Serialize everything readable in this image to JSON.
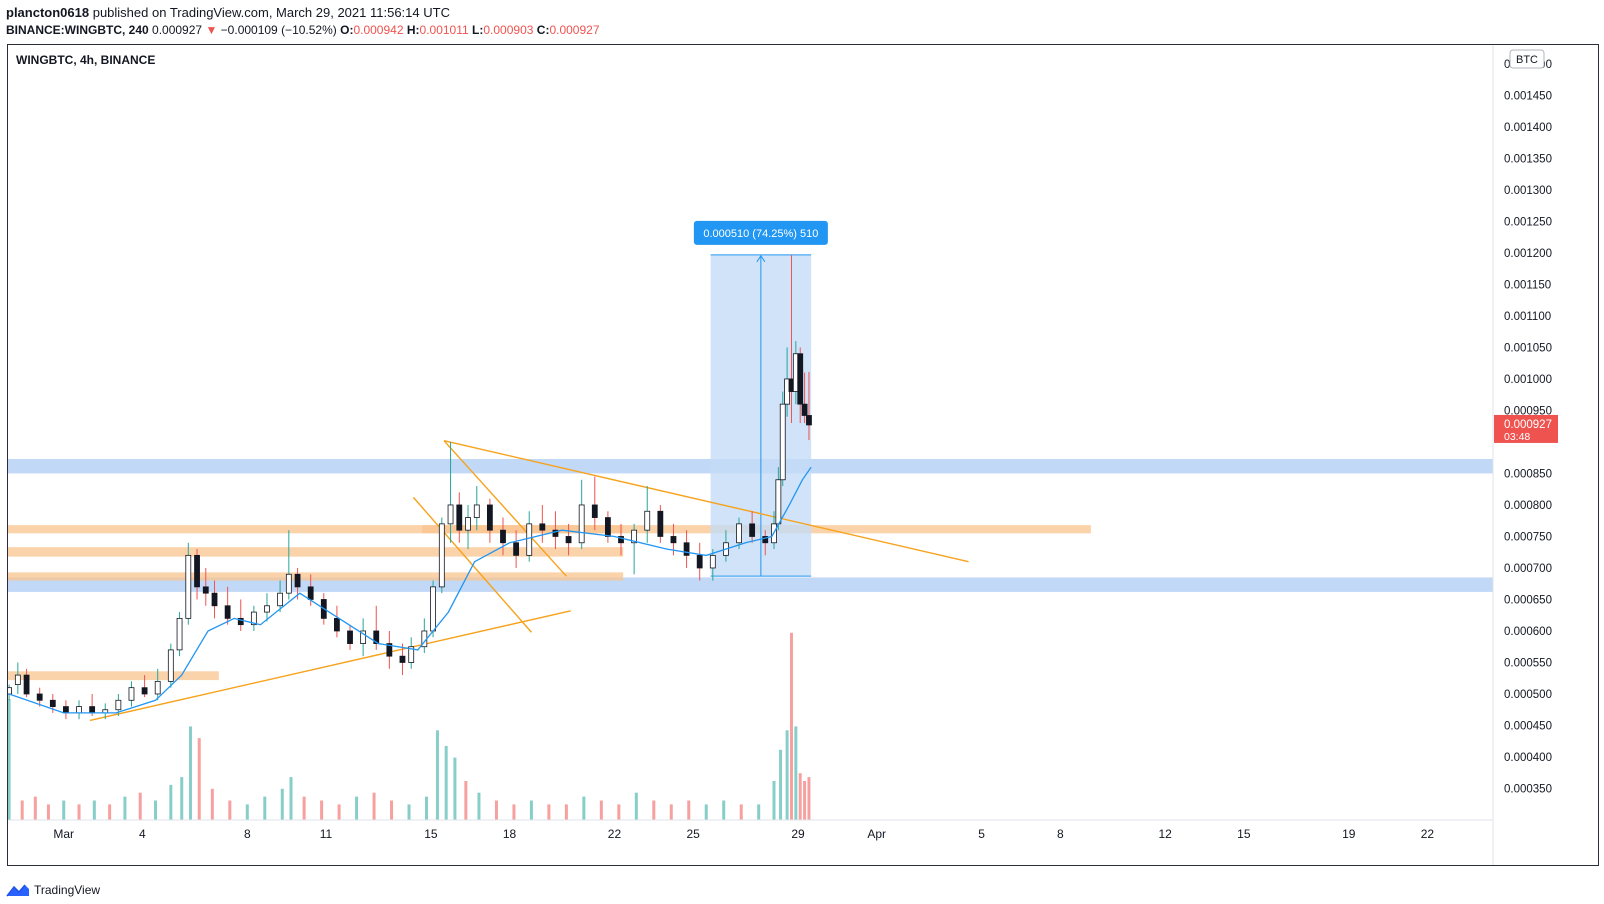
{
  "header": {
    "publisher": "plancton0618",
    "published_text": "published on TradingView.com, March 29, 2021 11:56:14 UTC",
    "symbol": "BINANCE:WINGBTC, 240",
    "last": "0.000927",
    "change_arrow": "▼",
    "change": "−0.000109 (−10.52%)",
    "o_label": "O:",
    "o_value": "0.000942",
    "h_label": "H:",
    "h_value": "0.001011",
    "l_label": "L:",
    "l_value": "0.000903",
    "c_label": "C:",
    "c_value": "0.000927"
  },
  "footer": {
    "brand": "TradingView"
  },
  "colors": {
    "up": "#26a69a",
    "down": "#ef5350",
    "ma": "#2196f3",
    "trendline": "#f7a21b",
    "orange_zone": "#f9c48f",
    "blue_zone": "#90b8f0",
    "measure_fill": "#c4dcf6",
    "measure_label_bg": "#2196f3"
  },
  "chart_data": {
    "type": "candlestick",
    "title": "WINGBTC, 4h, BINANCE",
    "currency_badge": "BTC",
    "y_range": [
      0.0003,
      0.00153
    ],
    "y_ticks": [
      "0.001500",
      "0.001450",
      "0.001400",
      "0.001350",
      "0.001300",
      "0.001250",
      "0.001200",
      "0.001150",
      "0.001100",
      "0.001050",
      "0.001000",
      "0.000950",
      "0.000850",
      "0.000800",
      "0.000750",
      "0.000700",
      "0.000650",
      "0.000600",
      "0.000550",
      "0.000500",
      "0.000450",
      "0.000400",
      "0.000350"
    ],
    "y_tick_partial": "0.001500",
    "x_ticks": [
      "Mar",
      "4",
      "8",
      "11",
      "15",
      "18",
      "22",
      "25",
      "29",
      "Apr",
      "5",
      "8",
      "12",
      "15",
      "19",
      "22"
    ],
    "x_tick_dates": [
      "2021-03-01",
      "2021-03-04",
      "2021-03-08",
      "2021-03-11",
      "2021-03-15",
      "2021-03-18",
      "2021-03-22",
      "2021-03-25",
      "2021-03-29",
      "2021-04-01",
      "2021-04-05",
      "2021-04-08",
      "2021-04-12",
      "2021-04-15",
      "2021-04-19",
      "2021-04-22"
    ],
    "x_range": [
      "2021-02-26T21:00",
      "2021-04-24T12:00"
    ],
    "last_price_label": "0.000927",
    "countdown_label": "03:48",
    "measure": {
      "label": "0.000510 (74.25%) 510",
      "from_date": "2021-03-25T16:00",
      "to_date": "2021-03-29T12:00",
      "low": 0.000687,
      "high": 0.001197
    },
    "zones": [
      {
        "color": "blue",
        "low": 0.00085,
        "high": 0.000873,
        "from": "2021-02-26T21:00",
        "to": "2021-04-24T12:00"
      },
      {
        "color": "blue",
        "low": 0.000662,
        "high": 0.000685,
        "from": "2021-02-26T21:00",
        "to": "2021-04-24T12:00"
      },
      {
        "color": "orange",
        "low": 0.000755,
        "high": 0.000768,
        "from": "2021-02-26T21:00",
        "to": "2021-03-22T08:00"
      },
      {
        "color": "orange",
        "low": 0.000755,
        "high": 0.000768,
        "from": "2021-03-14T16:00",
        "to": "2021-04-09T04:00"
      },
      {
        "color": "orange",
        "low": 0.000718,
        "high": 0.000733,
        "from": "2021-02-26T21:00",
        "to": "2021-03-22T08:00"
      },
      {
        "color": "orange",
        "low": 0.00068,
        "high": 0.000693,
        "from": "2021-02-26T21:00",
        "to": "2021-03-22T08:00"
      },
      {
        "color": "orange",
        "low": 0.000522,
        "high": 0.000536,
        "from": "2021-02-26T21:00",
        "to": "2021-03-06T22:00"
      }
    ],
    "trendlines": [
      {
        "from": [
          "2021-03-02T00:00",
          0.000458
        ],
        "to": [
          "2021-03-20T08:00",
          0.000632
        ]
      },
      {
        "from": [
          "2021-03-15T12:00",
          0.000902
        ],
        "to": [
          "2021-04-04T12:00",
          0.00071
        ]
      },
      {
        "from": [
          "2021-03-15T12:00",
          0.000902
        ],
        "to": [
          "2021-03-20T04:00",
          0.000687
        ]
      },
      {
        "from": [
          "2021-03-14T08:00",
          0.000812
        ],
        "to": [
          "2021-03-18T20:00",
          0.000598
        ]
      }
    ],
    "ma_path": [
      [
        "2021-02-26T22:00",
        0.0005
      ],
      [
        "2021-03-01T00:00",
        0.00047
      ],
      [
        "2021-03-03T00:00",
        0.00047
      ],
      [
        "2021-03-04T12:00",
        0.00049
      ],
      [
        "2021-03-05T12:00",
        0.00053
      ],
      [
        "2021-03-06T12:00",
        0.0006
      ],
      [
        "2021-03-07T12:00",
        0.00062
      ],
      [
        "2021-03-08T12:00",
        0.00061
      ],
      [
        "2021-03-10T00:00",
        0.00066
      ],
      [
        "2021-03-11T12:00",
        0.00062
      ],
      [
        "2021-03-13T00:00",
        0.00058
      ],
      [
        "2021-03-14T12:00",
        0.00057
      ],
      [
        "2021-03-15T16:00",
        0.00063
      ],
      [
        "2021-03-16T16:00",
        0.00071
      ],
      [
        "2021-03-18T00:00",
        0.00074
      ],
      [
        "2021-03-20T00:00",
        0.00076
      ],
      [
        "2021-03-22T00:00",
        0.00075
      ],
      [
        "2021-03-24T00:00",
        0.00073
      ],
      [
        "2021-03-25T12:00",
        0.00072
      ],
      [
        "2021-03-27T00:00",
        0.00074
      ],
      [
        "2021-03-28T00:00",
        0.00075
      ],
      [
        "2021-03-28T16:00",
        0.0008
      ],
      [
        "2021-03-29T04:00",
        0.00084
      ],
      [
        "2021-03-29T12:00",
        0.00086
      ]
    ],
    "candles": [
      [
        "2021-02-26T22:00",
        0.0005,
        0.000515,
        0.00049,
        0.00051
      ],
      [
        "2021-02-27T06:00",
        0.000515,
        0.00055,
        0.0005,
        0.00053
      ],
      [
        "2021-02-27T14:00",
        0.00053,
        0.00054,
        0.000495,
        0.0005
      ],
      [
        "2021-02-28T02:00",
        0.0005,
        0.00051,
        0.00048,
        0.00049
      ],
      [
        "2021-02-28T14:00",
        0.00049,
        0.0005,
        0.00047,
        0.00048
      ],
      [
        "2021-03-01T02:00",
        0.00048,
        0.00049,
        0.00046,
        0.00047
      ],
      [
        "2021-03-01T14:00",
        0.00047,
        0.00049,
        0.00046,
        0.00048
      ],
      [
        "2021-03-02T02:00",
        0.00048,
        0.0005,
        0.000465,
        0.00047
      ],
      [
        "2021-03-02T14:00",
        0.00047,
        0.000485,
        0.00046,
        0.000475
      ],
      [
        "2021-03-03T02:00",
        0.000475,
        0.0005,
        0.000465,
        0.00049
      ],
      [
        "2021-03-03T14:00",
        0.00049,
        0.00052,
        0.00048,
        0.00051
      ],
      [
        "2021-03-04T02:00",
        0.00051,
        0.00053,
        0.000495,
        0.0005
      ],
      [
        "2021-03-04T14:00",
        0.0005,
        0.00054,
        0.00049,
        0.00052
      ],
      [
        "2021-03-05T02:00",
        0.00052,
        0.00058,
        0.00051,
        0.00057
      ],
      [
        "2021-03-05T10:00",
        0.00057,
        0.00063,
        0.00056,
        0.00062
      ],
      [
        "2021-03-05T18:00",
        0.00062,
        0.00074,
        0.00061,
        0.00072
      ],
      [
        "2021-03-06T02:00",
        0.00072,
        0.00073,
        0.00065,
        0.00067
      ],
      [
        "2021-03-06T10:00",
        0.00067,
        0.0007,
        0.00064,
        0.00066
      ],
      [
        "2021-03-06T18:00",
        0.00066,
        0.00068,
        0.00062,
        0.00064
      ],
      [
        "2021-03-07T06:00",
        0.00064,
        0.00067,
        0.00061,
        0.00062
      ],
      [
        "2021-03-07T18:00",
        0.00062,
        0.00065,
        0.0006,
        0.00061
      ],
      [
        "2021-03-08T06:00",
        0.00061,
        0.00064,
        0.0006,
        0.00063
      ],
      [
        "2021-03-08T18:00",
        0.00063,
        0.00066,
        0.000615,
        0.00064
      ],
      [
        "2021-03-09T06:00",
        0.00064,
        0.00068,
        0.00063,
        0.00066
      ],
      [
        "2021-03-09T14:00",
        0.00066,
        0.00076,
        0.00065,
        0.00069
      ],
      [
        "2021-03-09T22:00",
        0.00069,
        0.0007,
        0.00065,
        0.00067
      ],
      [
        "2021-03-10T10:00",
        0.00067,
        0.00069,
        0.00064,
        0.00065
      ],
      [
        "2021-03-10T22:00",
        0.00065,
        0.00066,
        0.00061,
        0.00062
      ],
      [
        "2021-03-11T10:00",
        0.00062,
        0.00064,
        0.00059,
        0.0006
      ],
      [
        "2021-03-11T22:00",
        0.0006,
        0.00061,
        0.00057,
        0.00058
      ],
      [
        "2021-03-12T10:00",
        0.00058,
        0.00062,
        0.00056,
        0.0006
      ],
      [
        "2021-03-12T22:00",
        0.0006,
        0.00064,
        0.00057,
        0.00058
      ],
      [
        "2021-03-13T10:00",
        0.00058,
        0.0006,
        0.00054,
        0.00056
      ],
      [
        "2021-03-13T22:00",
        0.00056,
        0.00058,
        0.00053,
        0.00055
      ],
      [
        "2021-03-14T06:00",
        0.00055,
        0.00059,
        0.00054,
        0.000575
      ],
      [
        "2021-03-14T18:00",
        0.000575,
        0.00062,
        0.000565,
        0.0006
      ],
      [
        "2021-03-15T02:00",
        0.0006,
        0.00068,
        0.00059,
        0.00067
      ],
      [
        "2021-03-15T10:00",
        0.00067,
        0.00078,
        0.00066,
        0.00077
      ],
      [
        "2021-03-15T18:00",
        0.00077,
        0.0009,
        0.00074,
        0.0008
      ],
      [
        "2021-03-16T02:00",
        0.0008,
        0.00082,
        0.00074,
        0.00076
      ],
      [
        "2021-03-16T10:00",
        0.00076,
        0.0008,
        0.00073,
        0.00078
      ],
      [
        "2021-03-16T18:00",
        0.00078,
        0.00083,
        0.00076,
        0.0008
      ],
      [
        "2021-03-17T06:00",
        0.0008,
        0.00081,
        0.00074,
        0.00076
      ],
      [
        "2021-03-17T18:00",
        0.00076,
        0.00078,
        0.00072,
        0.00074
      ],
      [
        "2021-03-18T06:00",
        0.00074,
        0.00076,
        0.0007,
        0.00072
      ],
      [
        "2021-03-18T18:00",
        0.00072,
        0.00079,
        0.00071,
        0.00077
      ],
      [
        "2021-03-19T06:00",
        0.00077,
        0.0008,
        0.00074,
        0.00076
      ],
      [
        "2021-03-19T18:00",
        0.00076,
        0.00079,
        0.00073,
        0.00075
      ],
      [
        "2021-03-20T06:00",
        0.00075,
        0.00077,
        0.00072,
        0.00074
      ],
      [
        "2021-03-20T18:00",
        0.00074,
        0.00084,
        0.00073,
        0.0008
      ],
      [
        "2021-03-21T06:00",
        0.0008,
        0.000845,
        0.00076,
        0.00078
      ],
      [
        "2021-03-21T18:00",
        0.00078,
        0.00079,
        0.00074,
        0.00075
      ],
      [
        "2021-03-22T06:00",
        0.00075,
        0.00077,
        0.00072,
        0.00074
      ],
      [
        "2021-03-22T18:00",
        0.00074,
        0.00077,
        0.00069,
        0.00076
      ],
      [
        "2021-03-23T06:00",
        0.00076,
        0.00083,
        0.00074,
        0.00079
      ],
      [
        "2021-03-23T18:00",
        0.00079,
        0.0008,
        0.00074,
        0.00075
      ],
      [
        "2021-03-24T06:00",
        0.00075,
        0.00077,
        0.00072,
        0.00074
      ],
      [
        "2021-03-24T18:00",
        0.00074,
        0.00076,
        0.0007,
        0.00072
      ],
      [
        "2021-03-25T06:00",
        0.00072,
        0.00074,
        0.00068,
        0.0007
      ],
      [
        "2021-03-25T18:00",
        0.0007,
        0.00073,
        0.00068,
        0.00072
      ],
      [
        "2021-03-26T06:00",
        0.00072,
        0.00076,
        0.00071,
        0.00074
      ],
      [
        "2021-03-26T18:00",
        0.00074,
        0.00078,
        0.00073,
        0.00077
      ],
      [
        "2021-03-27T06:00",
        0.00077,
        0.00079,
        0.00074,
        0.00075
      ],
      [
        "2021-03-27T18:00",
        0.00075,
        0.00076,
        0.00072,
        0.00074
      ],
      [
        "2021-03-28T02:00",
        0.00074,
        0.00079,
        0.00073,
        0.00077
      ],
      [
        "2021-03-28T06:00",
        0.00077,
        0.00086,
        0.00076,
        0.00084
      ],
      [
        "2021-03-28T10:00",
        0.00084,
        0.00098,
        0.00083,
        0.00096
      ],
      [
        "2021-03-28T14:00",
        0.00096,
        0.00105,
        0.00094,
        0.001
      ],
      [
        "2021-03-28T18:00",
        0.001,
        0.001197,
        0.00093,
        0.00098
      ],
      [
        "2021-03-28T22:00",
        0.00098,
        0.00106,
        0.00096,
        0.00104
      ],
      [
        "2021-03-29T02:00",
        0.00104,
        0.00105,
        0.00093,
        0.00096
      ],
      [
        "2021-03-29T06:00",
        0.00096,
        0.00101,
        0.00093,
        0.000942
      ],
      [
        "2021-03-29T10:00",
        0.000942,
        0.001011,
        0.000903,
        0.000927
      ]
    ],
    "volume_range": [
      0,
      0.5
    ],
    "volumes": [
      [
        "2021-02-26T22:00",
        0.31,
        "up"
      ],
      [
        "2021-02-27T10:00",
        0.05,
        "down"
      ],
      [
        "2021-02-27T22:00",
        0.06,
        "down"
      ],
      [
        "2021-02-28T10:00",
        0.04,
        "down"
      ],
      [
        "2021-03-01T00:00",
        0.05,
        "up"
      ],
      [
        "2021-03-01T14:00",
        0.04,
        "down"
      ],
      [
        "2021-03-02T04:00",
        0.05,
        "up"
      ],
      [
        "2021-03-02T18:00",
        0.04,
        "down"
      ],
      [
        "2021-03-03T08:00",
        0.06,
        "up"
      ],
      [
        "2021-03-03T22:00",
        0.07,
        "down"
      ],
      [
        "2021-03-04T12:00",
        0.05,
        "up"
      ],
      [
        "2021-03-05T02:00",
        0.09,
        "up"
      ],
      [
        "2021-03-05T12:00",
        0.11,
        "up"
      ],
      [
        "2021-03-05T20:00",
        0.24,
        "up"
      ],
      [
        "2021-03-06T04:00",
        0.21,
        "down"
      ],
      [
        "2021-03-06T16:00",
        0.08,
        "down"
      ],
      [
        "2021-03-07T08:00",
        0.05,
        "down"
      ],
      [
        "2021-03-08T00:00",
        0.04,
        "up"
      ],
      [
        "2021-03-08T16:00",
        0.06,
        "up"
      ],
      [
        "2021-03-09T08:00",
        0.08,
        "up"
      ],
      [
        "2021-03-09T16:00",
        0.11,
        "up"
      ],
      [
        "2021-03-10T04:00",
        0.06,
        "down"
      ],
      [
        "2021-03-10T20:00",
        0.05,
        "down"
      ],
      [
        "2021-03-11T12:00",
        0.04,
        "down"
      ],
      [
        "2021-03-12T04:00",
        0.06,
        "up"
      ],
      [
        "2021-03-12T20:00",
        0.07,
        "down"
      ],
      [
        "2021-03-13T12:00",
        0.05,
        "down"
      ],
      [
        "2021-03-14T04:00",
        0.04,
        "up"
      ],
      [
        "2021-03-14T20:00",
        0.06,
        "up"
      ],
      [
        "2021-03-15T06:00",
        0.23,
        "up"
      ],
      [
        "2021-03-15T14:00",
        0.19,
        "up"
      ],
      [
        "2021-03-15T22:00",
        0.16,
        "up"
      ],
      [
        "2021-03-16T08:00",
        0.1,
        "down"
      ],
      [
        "2021-03-16T20:00",
        0.07,
        "up"
      ],
      [
        "2021-03-17T12:00",
        0.05,
        "down"
      ],
      [
        "2021-03-18T04:00",
        0.04,
        "down"
      ],
      [
        "2021-03-18T20:00",
        0.05,
        "up"
      ],
      [
        "2021-03-19T12:00",
        0.04,
        "down"
      ],
      [
        "2021-03-20T04:00",
        0.04,
        "down"
      ],
      [
        "2021-03-20T20:00",
        0.06,
        "up"
      ],
      [
        "2021-03-21T12:00",
        0.05,
        "down"
      ],
      [
        "2021-03-22T04:00",
        0.04,
        "down"
      ],
      [
        "2021-03-22T20:00",
        0.07,
        "up"
      ],
      [
        "2021-03-23T12:00",
        0.05,
        "down"
      ],
      [
        "2021-03-24T04:00",
        0.04,
        "down"
      ],
      [
        "2021-03-24T20:00",
        0.05,
        "down"
      ],
      [
        "2021-03-25T12:00",
        0.04,
        "up"
      ],
      [
        "2021-03-26T04:00",
        0.05,
        "up"
      ],
      [
        "2021-03-26T20:00",
        0.04,
        "down"
      ],
      [
        "2021-03-27T12:00",
        0.04,
        "up"
      ],
      [
        "2021-03-28T02:00",
        0.1,
        "up"
      ],
      [
        "2021-03-28T08:00",
        0.18,
        "up"
      ],
      [
        "2021-03-28T14:00",
        0.23,
        "up"
      ],
      [
        "2021-03-28T18:00",
        0.48,
        "down"
      ],
      [
        "2021-03-28T22:00",
        0.24,
        "up"
      ],
      [
        "2021-03-29T02:00",
        0.12,
        "down"
      ],
      [
        "2021-03-29T06:00",
        0.1,
        "down"
      ],
      [
        "2021-03-29T10:00",
        0.11,
        "down"
      ]
    ]
  }
}
